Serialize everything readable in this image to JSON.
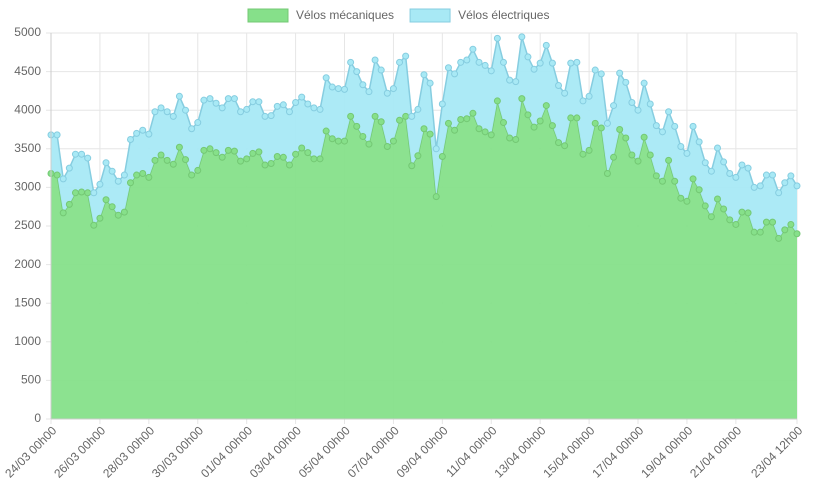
{
  "chart_data": {
    "type": "area",
    "stacked": true,
    "grid": true,
    "categories": [
      "24/03 00h00",
      null,
      null,
      null,
      null,
      null,
      null,
      null,
      "26/03 00h00",
      null,
      null,
      null,
      null,
      null,
      null,
      null,
      "28/03 00h00",
      null,
      null,
      null,
      null,
      null,
      null,
      null,
      "30/03 00h00",
      null,
      null,
      null,
      null,
      null,
      null,
      null,
      "01/04 00h00",
      null,
      null,
      null,
      null,
      null,
      null,
      null,
      "03/04 00h00",
      null,
      null,
      null,
      null,
      null,
      null,
      null,
      "05/04 00h00",
      null,
      null,
      null,
      null,
      null,
      null,
      null,
      "07/04 00h00",
      null,
      null,
      null,
      null,
      null,
      null,
      null,
      "09/04 00h00",
      null,
      null,
      null,
      null,
      null,
      null,
      null,
      "11/04 00h00",
      null,
      null,
      null,
      null,
      null,
      null,
      null,
      "13/04 00h00",
      null,
      null,
      null,
      null,
      null,
      null,
      null,
      "15/04 00h00",
      null,
      null,
      null,
      null,
      null,
      null,
      null,
      "17/04 00h00",
      null,
      null,
      null,
      null,
      null,
      null,
      null,
      "19/04 00h00",
      null,
      null,
      null,
      null,
      null,
      null,
      null,
      "21/04 00h00",
      null,
      null,
      null,
      null,
      null,
      null,
      null,
      null,
      null,
      "23/04 12h00"
    ],
    "series": [
      {
        "name": "Vélos mécaniques",
        "color": "#86e08a",
        "stroke": "#74c874",
        "values": [
          3180,
          3160,
          2670,
          2780,
          2930,
          2940,
          2930,
          2510,
          2600,
          2840,
          2750,
          2640,
          2680,
          3060,
          3160,
          3180,
          3130,
          3350,
          3420,
          3350,
          3300,
          3520,
          3360,
          3160,
          3220,
          3480,
          3500,
          3450,
          3390,
          3480,
          3470,
          3340,
          3370,
          3440,
          3460,
          3290,
          3310,
          3400,
          3390,
          3290,
          3430,
          3510,
          3450,
          3370,
          3370,
          3730,
          3630,
          3600,
          3600,
          3920,
          3790,
          3660,
          3560,
          3920,
          3850,
          3530,
          3600,
          3870,
          3920,
          3280,
          3410,
          3760,
          3690,
          2880,
          3400,
          3830,
          3740,
          3880,
          3890,
          3960,
          3760,
          3720,
          3680,
          4120,
          3840,
          3640,
          3620,
          4150,
          3940,
          3780,
          3860,
          4060,
          3800,
          3580,
          3540,
          3900,
          3900,
          3430,
          3480,
          3830,
          3770,
          3180,
          3390,
          3750,
          3640,
          3420,
          3340,
          3650,
          3420,
          3150,
          3080,
          3350,
          3080,
          2860,
          2820,
          3110,
          2970,
          2760,
          2620,
          2850,
          2720,
          2580,
          2520,
          2680,
          2670,
          2420,
          2420,
          2550,
          2550,
          2340,
          2450,
          2520,
          2400
        ]
      },
      {
        "name": "Vélos électriques",
        "color": "#a8e9f5",
        "stroke": "#86cde0",
        "values": [
          500,
          520,
          440,
          470,
          500,
          490,
          450,
          420,
          440,
          480,
          460,
          440,
          480,
          560,
          540,
          560,
          560,
          630,
          610,
          630,
          620,
          660,
          640,
          600,
          620,
          650,
          650,
          640,
          640,
          670,
          680,
          640,
          640,
          670,
          650,
          630,
          620,
          650,
          680,
          690,
          670,
          660,
          630,
          660,
          640,
          690,
          670,
          680,
          670,
          700,
          710,
          670,
          680,
          730,
          670,
          690,
          680,
          750,
          780,
          640,
          600,
          700,
          660,
          620,
          680,
          720,
          730,
          740,
          760,
          830,
          860,
          860,
          830,
          810,
          780,
          750,
          750,
          800,
          750,
          750,
          750,
          780,
          810,
          740,
          680,
          710,
          720,
          690,
          700,
          690,
          700,
          650,
          670,
          730,
          720,
          680,
          660,
          700,
          660,
          650,
          640,
          630,
          710,
          670,
          620,
          680,
          620,
          560,
          590,
          660,
          610,
          600,
          610,
          610,
          580,
          580,
          600,
          610,
          610,
          590,
          610,
          630,
          620
        ]
      }
    ],
    "ylim": [
      0,
      5000
    ],
    "yticks": [
      0,
      500,
      1000,
      1500,
      2000,
      2500,
      3000,
      3500,
      4000,
      4500,
      5000
    ]
  }
}
